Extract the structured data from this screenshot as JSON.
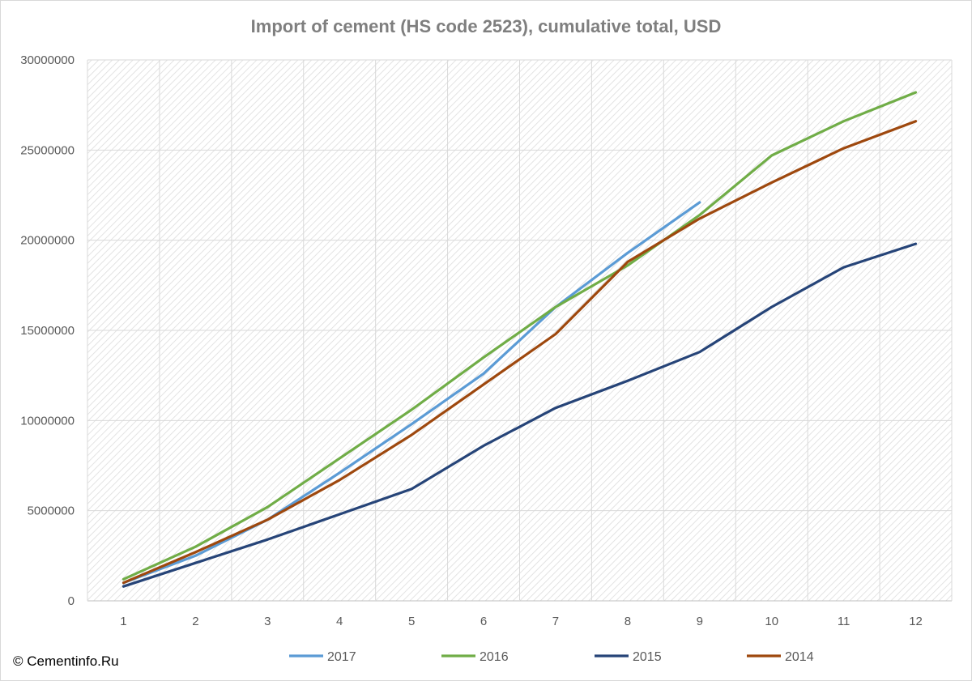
{
  "chart_data": {
    "type": "line",
    "title": "Import of cement (HS code 2523), cumulative total, USD",
    "xlabel": "",
    "ylabel": "",
    "categories": [
      "1",
      "2",
      "3",
      "4",
      "5",
      "6",
      "7",
      "8",
      "9",
      "10",
      "11",
      "12"
    ],
    "y_ticks": [
      "0",
      "5000000",
      "10000000",
      "15000000",
      "20000000",
      "25000000",
      "30000000"
    ],
    "ylim": [
      0,
      30000000
    ],
    "grid": true,
    "legend_position": "bottom",
    "series": [
      {
        "name": "2017",
        "color": "#5b9bd5",
        "values": [
          1000000,
          2500000,
          4500000,
          7100000,
          9800000,
          12600000,
          16300000,
          19300000,
          22100000,
          null,
          null,
          null
        ]
      },
      {
        "name": "2016",
        "color": "#70ad47",
        "values": [
          1200000,
          3000000,
          5200000,
          7900000,
          10600000,
          13500000,
          16300000,
          18600000,
          21400000,
          24700000,
          26600000,
          28200000
        ]
      },
      {
        "name": "2015",
        "color": "#264478",
        "values": [
          800000,
          2100000,
          3400000,
          4800000,
          6200000,
          8600000,
          10700000,
          12200000,
          13800000,
          16300000,
          18500000,
          19800000
        ]
      },
      {
        "name": "2014",
        "color": "#9e480e",
        "values": [
          1000000,
          2700000,
          4500000,
          6700000,
          9200000,
          12000000,
          14800000,
          18800000,
          21200000,
          23200000,
          25100000,
          26600000
        ]
      }
    ]
  },
  "copyright": "© Cementinfo.Ru"
}
